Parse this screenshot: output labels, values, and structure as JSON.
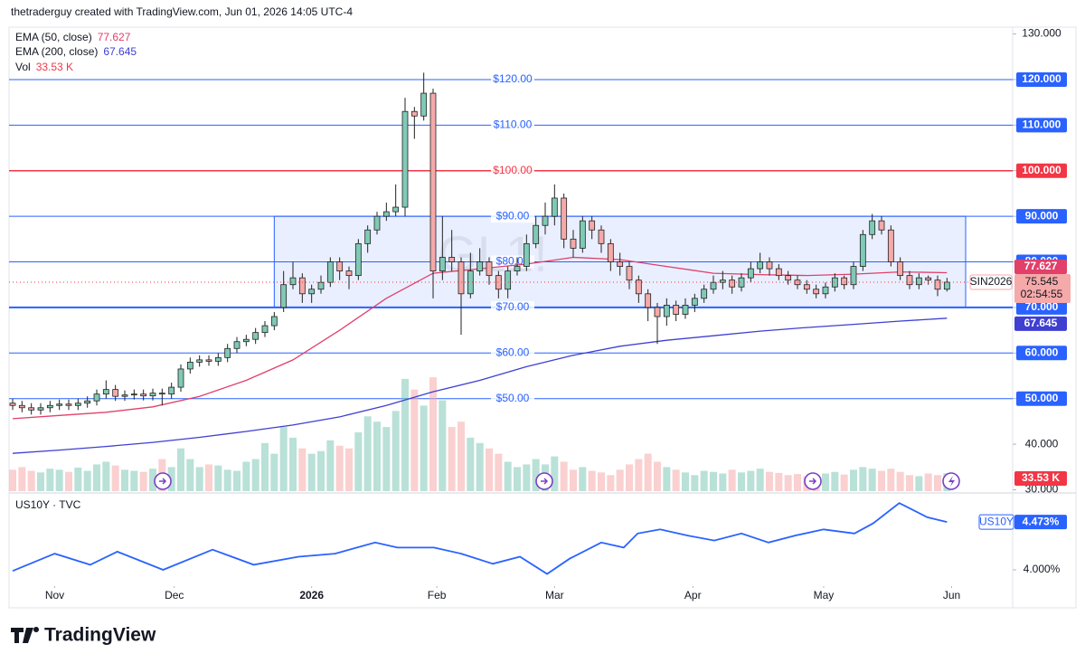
{
  "chart_data": {
    "type": "candlestick",
    "header": "thetraderguy created with TradingView.com, Jun 01, 2026 14:05 UTC-4",
    "watermark": "GL1!",
    "symbol_label": "SIN2026",
    "countdown": "02:54:55",
    "footer": "TradingView",
    "up_color": "#80c9b6",
    "down_color": "#f5a9a9",
    "open": [
      49,
      48.5,
      48,
      47.5,
      48,
      48.5,
      48.8,
      48.5,
      49,
      49.5,
      51,
      52,
      50.5,
      50.8,
      51,
      50.6,
      51.2,
      51,
      52.5,
      56.5,
      58,
      58.5,
      58.2,
      59,
      61,
      62.5,
      63,
      64.5,
      66,
      70,
      75,
      76.5,
      73,
      74,
      75.5,
      80,
      78,
      77,
      84,
      87,
      90,
      91,
      92,
      113,
      112,
      117,
      78,
      81,
      80,
      73,
      78,
      80,
      77,
      74,
      78,
      79,
      84,
      88,
      90,
      94,
      85,
      83,
      89,
      87,
      84,
      80,
      79,
      76,
      73,
      70,
      68,
      70.5,
      68.5,
      70.5,
      72,
      74,
      75.5,
      76,
      74.5,
      76.5,
      78.5,
      80,
      78.5,
      77,
      76,
      75,
      74,
      73,
      74.5,
      76.5,
      75,
      79,
      86,
      89,
      87,
      80,
      77,
      75,
      76.5,
      76,
      74
    ],
    "high": [
      50,
      49.5,
      49,
      49,
      49.5,
      49.8,
      49.8,
      50,
      50.5,
      52,
      54,
      53,
      51.8,
      52,
      52,
      52.2,
      52.2,
      53.5,
      57.5,
      59,
      59.5,
      59.5,
      60,
      62,
      63.5,
      64,
      65.5,
      67,
      69,
      78,
      80,
      77.5,
      75,
      77,
      81,
      81,
      79,
      85,
      88,
      91,
      93,
      97,
      116,
      114,
      121.5,
      118,
      90,
      87,
      81,
      82,
      83,
      81,
      78,
      79,
      81,
      86,
      90,
      93,
      97,
      95,
      87,
      90,
      90,
      88,
      85,
      82,
      80,
      77,
      74,
      71,
      72,
      71.5,
      72,
      73,
      75,
      77,
      78,
      77,
      77.5,
      80,
      82,
      81,
      79.5,
      78,
      77,
      76,
      75,
      75.5,
      77.5,
      77,
      80,
      87,
      90.5,
      90,
      88,
      81,
      78,
      77.5,
      77,
      77,
      76.5
    ],
    "low": [
      47.5,
      47,
      46.5,
      46.5,
      47,
      47.5,
      47.5,
      47.5,
      48,
      48.5,
      50,
      49.5,
      49.5,
      49.8,
      49.6,
      49.6,
      48.5,
      50,
      51.5,
      55.5,
      57,
      57.2,
      57.2,
      58,
      60,
      61.5,
      62,
      63.5,
      65,
      69,
      74,
      71,
      71,
      73,
      74.5,
      76,
      74,
      76,
      82,
      86,
      89,
      90,
      90,
      107,
      111,
      72,
      76,
      78,
      64,
      72,
      77,
      75,
      72,
      72,
      77,
      78,
      83,
      86,
      88,
      83,
      81,
      82,
      85,
      82,
      78,
      77,
      74,
      71,
      67,
      62,
      66,
      67,
      67.5,
      69,
      71,
      73,
      74,
      73,
      73.5,
      75.5,
      77.5,
      77,
      76,
      75,
      74,
      73,
      72,
      72,
      73.5,
      74,
      74,
      78,
      85,
      86,
      79,
      76,
      74,
      74,
      75,
      72.5,
      73.5
    ],
    "close": [
      48.5,
      48,
      47.5,
      48,
      48.5,
      48.8,
      48.5,
      49,
      49.5,
      51,
      52,
      50.5,
      50.8,
      51,
      50.6,
      51.2,
      51,
      52.5,
      56.5,
      58,
      58.5,
      58.2,
      59,
      61,
      62.5,
      63,
      64.5,
      66,
      68,
      75,
      76.5,
      73,
      74,
      75.5,
      80,
      78,
      77,
      84,
      87,
      90,
      91,
      92,
      113,
      112,
      117,
      78,
      81,
      80,
      73,
      78,
      80,
      77,
      74,
      78,
      79,
      84,
      88,
      90,
      94,
      85,
      83,
      89,
      87,
      84,
      80,
      79,
      76,
      73,
      70,
      68,
      70.5,
      68.5,
      70.5,
      72,
      74,
      75.5,
      76,
      74.5,
      76.5,
      78.5,
      80,
      78.5,
      77,
      76,
      75,
      74,
      73,
      74.5,
      76.5,
      75,
      79,
      86,
      89,
      87,
      80,
      77,
      75,
      76.5,
      76,
      74,
      75.545
    ],
    "xlim": [
      0,
      102
    ],
    "xticks": [
      {
        "value": 4.5,
        "label": "Nov"
      },
      {
        "value": 17.3,
        "label": "Dec"
      },
      {
        "value": 32,
        "label": "2026"
      },
      {
        "value": 45.4,
        "label": "Feb"
      },
      {
        "value": 58,
        "label": "Mar"
      },
      {
        "value": 72.8,
        "label": "Apr"
      },
      {
        "value": 86.8,
        "label": "May"
      },
      {
        "value": 100.5,
        "label": "Jun"
      }
    ],
    "ylim": [
      29.7,
      131.5
    ],
    "yticks": [
      {
        "value": 130,
        "label": "130.000"
      },
      {
        "value": 120,
        "label": "120.000"
      },
      {
        "value": 110,
        "label": "110.000"
      },
      {
        "value": 100,
        "label": "100.000"
      },
      {
        "value": 90,
        "label": "90.000"
      },
      {
        "value": 80,
        "label": "80.000"
      },
      {
        "value": 70,
        "label": "70.000"
      },
      {
        "value": 60,
        "label": "60.000"
      },
      {
        "value": 50,
        "label": "50.000"
      },
      {
        "value": 40,
        "label": "40.000"
      },
      {
        "value": 30,
        "label": "30.000"
      }
    ],
    "levels": [
      {
        "value": 120,
        "label": "$120.00",
        "color": "#2962ff"
      },
      {
        "value": 110,
        "label": "$110.00",
        "color": "#2962ff"
      },
      {
        "value": 100,
        "label": "$100.00",
        "color": "#f23645"
      },
      {
        "value": 90,
        "label": "$90.00",
        "color": "#2962ff"
      },
      {
        "value": 80,
        "label": "$80.00",
        "color": "#2962ff"
      },
      {
        "value": 70,
        "label": "$70.00",
        "color": "#2962ff"
      },
      {
        "value": 60,
        "label": "$60.00",
        "color": "#2962ff"
      },
      {
        "value": 50,
        "label": "$50.00",
        "color": "#2962ff"
      }
    ],
    "zone": {
      "x": [
        28,
        102
      ],
      "y": [
        70,
        90
      ],
      "color": "#2962ff"
    },
    "series": [
      {
        "name": "EMA (50, close)",
        "color": "#e0406a",
        "x": [
          0,
          5,
          10,
          15,
          20,
          25,
          30,
          35,
          40,
          45,
          50,
          55,
          60,
          65,
          70,
          75,
          80,
          85,
          90,
          95,
          100
        ],
        "values": [
          45.6,
          46.3,
          47,
          48.2,
          50.5,
          54,
          58.5,
          65,
          72,
          77.5,
          78.5,
          79.5,
          81,
          80.5,
          79,
          77.5,
          77.2,
          77,
          77.3,
          77.8,
          77.627
        ]
      },
      {
        "name": "EMA (200, close)",
        "color": "#3f3fd1",
        "x": [
          0,
          5,
          10,
          15,
          20,
          25,
          30,
          35,
          40,
          45,
          50,
          55,
          60,
          65,
          70,
          75,
          80,
          85,
          90,
          95,
          100
        ],
        "values": [
          38,
          38.7,
          39.5,
          40.4,
          41.5,
          42.8,
          44.2,
          46,
          48.5,
          51.5,
          54,
          57,
          59.5,
          61.5,
          62.8,
          63.8,
          64.8,
          65.6,
          66.3,
          67,
          67.645
        ]
      }
    ],
    "volume": {
      "name": "Vol",
      "ylim": [
        0,
        220
      ],
      "last_label": "33.53 K",
      "values": [
        40,
        45,
        38,
        35,
        42,
        40,
        36,
        44,
        38,
        50,
        55,
        48,
        40,
        38,
        36,
        42,
        60,
        45,
        80,
        60,
        45,
        50,
        48,
        40,
        38,
        55,
        60,
        90,
        70,
        120,
        100,
        80,
        70,
        75,
        95,
        85,
        80,
        110,
        140,
        130,
        120,
        150,
        210,
        190,
        160,
        213,
        170,
        120,
        130,
        100,
        90,
        80,
        70,
        55,
        45,
        50,
        60,
        50,
        65,
        55,
        40,
        45,
        38,
        35,
        30,
        40,
        50,
        60,
        70,
        55,
        45,
        40,
        35,
        30,
        38,
        36,
        33,
        40,
        35,
        38,
        42,
        36,
        34,
        30,
        32,
        28,
        30,
        33,
        36,
        31,
        40,
        45,
        42,
        38,
        42,
        36,
        30,
        28,
        33,
        30,
        33.53
      ]
    },
    "panel2": {
      "name": "US10Y · TVC",
      "symbol": "US10Y",
      "color": "#2962ff",
      "ylim": [
        3.625,
        4.76
      ],
      "yticks": [
        {
          "value": 4,
          "label": "4.000%"
        }
      ],
      "last_label": "4.473%",
      "x": [
        0,
        4.5,
        8.3,
        11.2,
        16.1,
        21.4,
        25.8,
        30.6,
        34.5,
        38.8,
        41.2,
        45.1,
        48,
        51.4,
        54.3,
        57.2,
        59.6,
        63,
        65.4,
        66.9,
        69.3,
        72.2,
        75.1,
        78,
        80.9,
        83.8,
        86.8,
        90.1,
        92.1,
        94.9,
        97.9,
        100
      ],
      "values": [
        3.99,
        4.16,
        4.05,
        4.18,
        4,
        4.2,
        4.05,
        4.13,
        4.16,
        4.27,
        4.22,
        4.22,
        4.16,
        4.06,
        4.13,
        3.96,
        4.11,
        4.27,
        4.22,
        4.36,
        4.4,
        4.34,
        4.29,
        4.36,
        4.27,
        4.34,
        4.4,
        4.36,
        4.46,
        4.66,
        4.52,
        4.473
      ]
    }
  }
}
